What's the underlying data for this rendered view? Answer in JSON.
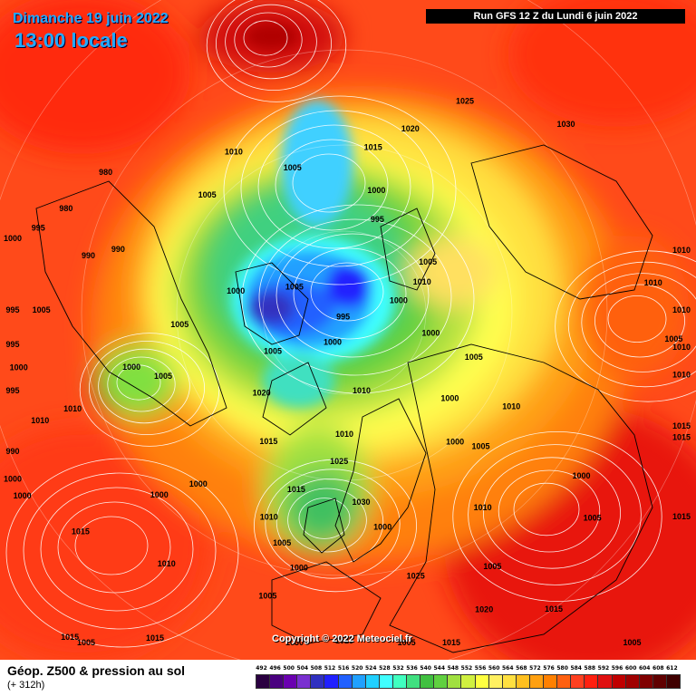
{
  "header": {
    "date_line": "Dimanche 19 juin 2022",
    "time_line": "13:00 locale",
    "run_info": "Run GFS 12 Z du Lundi 6 juin 2022"
  },
  "map": {
    "copyright": "Copyright © 2022 Meteociel.fr",
    "pressure_labels": [
      {
        "text": "1025",
        "lon": 150,
        "lat": 55
      },
      {
        "text": "1020",
        "lon": 160,
        "lat": 62
      },
      {
        "text": "1015",
        "lon": 170,
        "lat": 66
      },
      {
        "text": "1030",
        "lon": 130,
        "lat": 48
      },
      {
        "text": "1010",
        "lon": 100,
        "lat": 40
      },
      {
        "text": "1010",
        "lon": 95,
        "lat": 45
      },
      {
        "text": "1010",
        "lon": 90,
        "lat": 40
      },
      {
        "text": "1000",
        "lon": 165,
        "lat": 72
      },
      {
        "text": "995",
        "lon": 160,
        "lat": 76
      },
      {
        "text": "1005",
        "lon": 120,
        "lat": 76
      },
      {
        "text": "1010",
        "lon": 110,
        "lat": 78
      },
      {
        "text": "1000",
        "lon": 100,
        "lat": 82
      },
      {
        "text": "1000",
        "lon": 75,
        "lat": 77
      },
      {
        "text": "1005",
        "lon": 70,
        "lat": 70
      },
      {
        "text": "1010",
        "lon": 60,
        "lat": 62
      },
      {
        "text": "1000",
        "lon": 50,
        "lat": 70
      },
      {
        "text": "1005",
        "lon": 45,
        "lat": 62
      },
      {
        "text": "1010",
        "lon": 35,
        "lat": 55
      },
      {
        "text": "1005",
        "lon": 30,
        "lat": 47
      },
      {
        "text": "1000",
        "lon": 40,
        "lat": 65
      },
      {
        "text": "1010",
        "lon": 215,
        "lat": 62
      },
      {
        "text": "1005",
        "lon": 230,
        "lat": 64
      },
      {
        "text": "1005",
        "lon": 200,
        "lat": 68
      },
      {
        "text": "1000",
        "lon": 260,
        "lat": 74
      },
      {
        "text": "1005",
        "lon": 245,
        "lat": 82
      },
      {
        "text": "1010",
        "lon": 12,
        "lat": 78
      },
      {
        "text": "1010",
        "lon": 0,
        "lat": 72
      },
      {
        "text": "1000",
        "lon": 340,
        "lat": 85
      },
      {
        "text": "995",
        "lon": 350,
        "lat": 89
      },
      {
        "text": "1005",
        "lon": 300,
        "lat": 78
      },
      {
        "text": "1005",
        "lon": 275,
        "lat": 66
      },
      {
        "text": "1005",
        "lon": 290,
        "lat": 62
      },
      {
        "text": "1000",
        "lon": 285,
        "lat": 58
      },
      {
        "text": "990",
        "lon": 255,
        "lat": 56
      },
      {
        "text": "990",
        "lon": 258,
        "lat": 52
      },
      {
        "text": "980",
        "lon": 240,
        "lat": 50
      },
      {
        "text": "980",
        "lon": 250,
        "lat": 47
      },
      {
        "text": "995",
        "lon": 255,
        "lat": 44
      },
      {
        "text": "1010",
        "lon": 290,
        "lat": 48
      },
      {
        "text": "1010",
        "lon": 290,
        "lat": 43
      },
      {
        "text": "1005",
        "lon": 270,
        "lat": 46
      },
      {
        "text": "1000",
        "lon": 280,
        "lat": 42
      },
      {
        "text": "995",
        "lon": 283,
        "lat": 38
      },
      {
        "text": "1015",
        "lon": 330,
        "lat": 68
      },
      {
        "text": "1020",
        "lon": 315,
        "lat": 73
      },
      {
        "text": "1015",
        "lon": 345,
        "lat": 63
      },
      {
        "text": "1000",
        "lon": 320,
        "lat": 57
      },
      {
        "text": "1010",
        "lon": 340,
        "lat": 58
      },
      {
        "text": "1000",
        "lon": 315,
        "lat": 52
      },
      {
        "text": "1005",
        "lon": 345,
        "lat": 47
      },
      {
        "text": "1000",
        "lon": 350,
        "lat": 52
      },
      {
        "text": "1015",
        "lon": 310,
        "lat": 40
      },
      {
        "text": "1015",
        "lon": 330,
        "lat": 35
      },
      {
        "text": "1010",
        "lon": 325,
        "lat": 45
      },
      {
        "text": "1005",
        "lon": 10,
        "lat": 38
      },
      {
        "text": "1015",
        "lon": 320,
        "lat": 28
      },
      {
        "text": "1000",
        "lon": 55,
        "lat": 48
      },
      {
        "text": "1005",
        "lon": 50,
        "lat": 43
      },
      {
        "text": "1015",
        "lon": 35,
        "lat": 37
      },
      {
        "text": "1025",
        "lon": 15,
        "lat": 50
      },
      {
        "text": "1020",
        "lon": 25,
        "lat": 42
      },
      {
        "text": "1025",
        "lon": 0,
        "lat": 42
      },
      {
        "text": "1030",
        "lon": 352,
        "lat": 38
      },
      {
        "text": "1015",
        "lon": 70,
        "lat": 36
      },
      {
        "text": "1010",
        "lon": 80,
        "lat": 36
      },
      {
        "text": "1005",
        "lon": 85,
        "lat": 42
      },
      {
        "text": "1000",
        "lon": 295,
        "lat": 32
      },
      {
        "text": "1000",
        "lon": 300,
        "lat": 36
      },
      {
        "text": "990",
        "lon": 290,
        "lat": 30
      },
      {
        "text": "995",
        "lon": 275,
        "lat": 33
      },
      {
        "text": "1000",
        "lon": 260,
        "lat": 30
      },
      {
        "text": "1005",
        "lon": 330,
        "lat": 15
      },
      {
        "text": "995",
        "lon": 270,
        "lat": 20
      },
      {
        "text": "1015",
        "lon": 60,
        "lat": 30
      },
      {
        "text": "1015",
        "lon": 75,
        "lat": 25
      },
      {
        "text": "1010",
        "lon": 85,
        "lat": 28
      },
      {
        "text": "1005",
        "lon": 40,
        "lat": 25
      },
      {
        "text": "1015",
        "lon": 15,
        "lat": 30
      },
      {
        "text": "1030",
        "lon": 5,
        "lat": 62
      },
      {
        "text": "1025",
        "lon": 358,
        "lat": 68
      },
      {
        "text": "1000",
        "lon": 10,
        "lat": 58
      },
      {
        "text": "1005",
        "lon": 345,
        "lat": 55
      }
    ]
  },
  "footer": {
    "product": "Géop. Z500 & pression au sol",
    "lead": "(+ 312h)"
  },
  "legend": {
    "values": [
      "492",
      "496",
      "500",
      "504",
      "508",
      "512",
      "516",
      "520",
      "524",
      "528",
      "532",
      "536",
      "540",
      "544",
      "548",
      "552",
      "556",
      "560",
      "564",
      "568",
      "572",
      "576",
      "580",
      "584",
      "588",
      "592",
      "596",
      "600",
      "604",
      "608",
      "612"
    ],
    "colors": [
      "#2a0040",
      "#4a0080",
      "#6a00b0",
      "#7a30d0",
      "#3030c0",
      "#2020ff",
      "#2060ff",
      "#20a0ff",
      "#20d0ff",
      "#40ffff",
      "#40ffc0",
      "#40e080",
      "#40c040",
      "#60d040",
      "#a0e040",
      "#d0f040",
      "#ffff40",
      "#fff060",
      "#ffe040",
      "#ffc020",
      "#ffa010",
      "#ff8000",
      "#ff6010",
      "#ff4020",
      "#ff2010",
      "#e01010",
      "#c00000",
      "#a00000",
      "#800000",
      "#600000",
      "#400000"
    ]
  }
}
